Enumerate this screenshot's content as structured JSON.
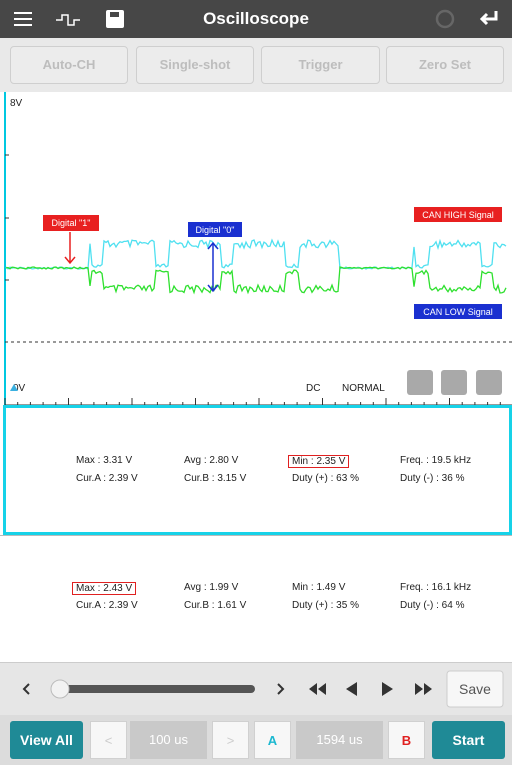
{
  "header": {
    "title": "Oscilloscope"
  },
  "toolbar": {
    "buttons": [
      "Auto-CH",
      "Single-shot",
      "Trigger",
      "Zero Set"
    ]
  },
  "scope": {
    "top_label": "8V",
    "bottom_label": "0V",
    "digital_one": "Digital \"1\"",
    "digital_zero": "Digital \"0\"",
    "can_high": "CAN HIGH Signal",
    "can_low": "CAN LOW Signal",
    "coupling": "DC",
    "mode": "NORMAL"
  },
  "channels": [
    {
      "rows": [
        [
          "Max : 3.31 V",
          "Avg : 2.80 V",
          "Min : 2.35 V",
          "Freq. : 19.5 kHz"
        ],
        [
          "Cur.A : 2.39 V",
          "Cur.B : 3.15 V",
          "Duty (+) : 63 %",
          "Duty (-) : 36 %"
        ]
      ]
    },
    {
      "rows": [
        [
          "Max : 2.43 V",
          "Avg : 1.99 V",
          "Min : 1.49 V",
          "Freq. : 16.1 kHz"
        ],
        [
          "Cur.A : 2.39 V",
          "Cur.B : 1.61 V",
          "Duty (+) : 35 %",
          "Duty (-) : 64 %"
        ]
      ]
    }
  ],
  "controls": {
    "save": "Save"
  },
  "footer": {
    "view_all": "View All",
    "time_base": "100 us",
    "cursor_a": "A",
    "cursor_delta": "1594 us",
    "cursor_b": "B",
    "start": "Start"
  }
}
